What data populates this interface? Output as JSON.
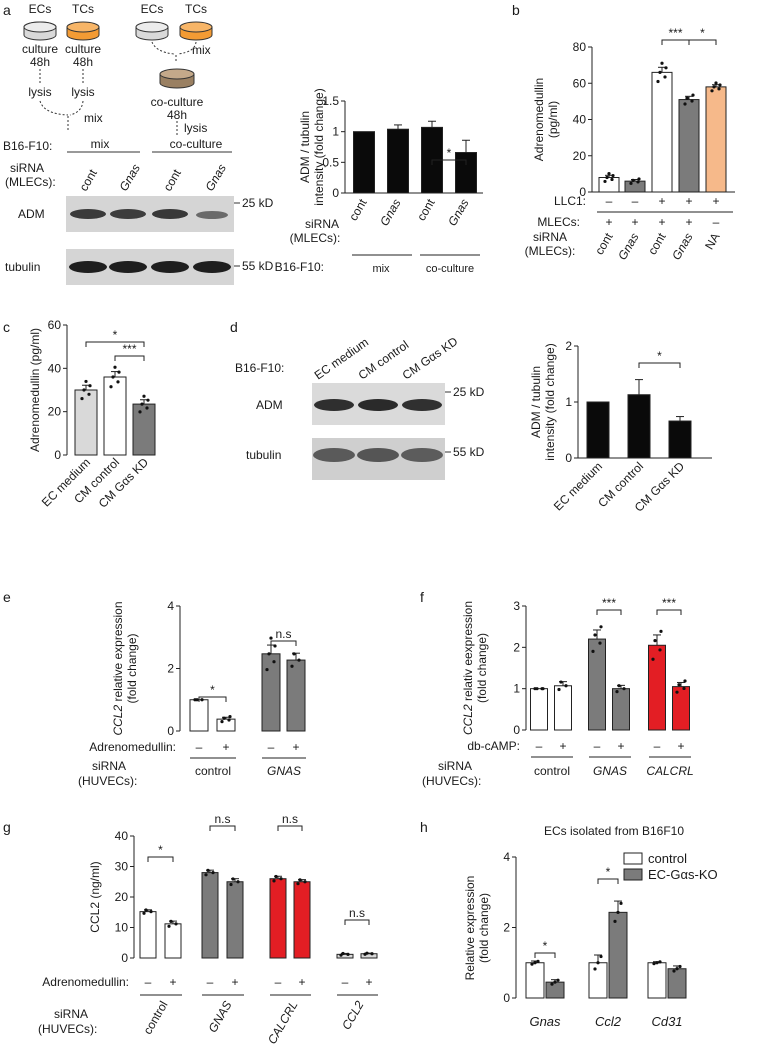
{
  "colors": {
    "black": "#0a0a0a",
    "gray": "#7b7b7b",
    "white": "#ffffff",
    "orange": "#f6b98a",
    "red": "#e31e24",
    "light_gray": "#d9d9d9",
    "blot_bg": "#d7d7d7"
  },
  "panel_a": {
    "letter": "a",
    "schematic": {
      "ec": "ECs",
      "tc": "TCs",
      "culture": "culture",
      "h48": "48h",
      "lysis": "lysis",
      "mix": "mix",
      "coculture": "co-culture",
      "mix_label": "mix",
      "coculture_label": "co-culture"
    },
    "blot": {
      "b16_label": "B16-F10:",
      "sirna_label": "siRNA",
      "mlecs_label": "(MLECs):",
      "lanes": [
        "cont",
        "Gnas",
        "cont",
        "Gnas"
      ],
      "row1": "ADM",
      "row2": "tubulin",
      "kd1": "25 kD",
      "kd2": "55 kD"
    }
  },
  "panel_b": {
    "letter": "b"
  },
  "panel_c": {
    "letter": "c"
  },
  "panel_d": {
    "letter": "d",
    "blot": {
      "b16_label": "B16-F10:",
      "lanes": [
        "EC medium",
        "CM control",
        "CM Gαs KD"
      ],
      "row1": "ADM",
      "row2": "tubulin",
      "kd1": "25 kD",
      "kd2": "55 kD"
    }
  },
  "panel_e": {
    "letter": "e"
  },
  "panel_f": {
    "letter": "f"
  },
  "panel_g": {
    "letter": "g"
  },
  "panel_h": {
    "letter": "h"
  },
  "chart_data": [
    {
      "id": "a_chart",
      "type": "bar",
      "ylabel": "ADM / tubulin intensity (fold change)",
      "ylim": [
        0,
        1.5
      ],
      "yticks": [
        0,
        0.5,
        1,
        1.5
      ],
      "categories": [
        "cont",
        "Gnas",
        "cont",
        "Gnas"
      ],
      "values": [
        1.0,
        1.04,
        1.07,
        0.66
      ],
      "errors": [
        0,
        0.07,
        0.1,
        0.2
      ],
      "row_labels": [
        "siRNA",
        "(MLECs):",
        "B16-F10:"
      ],
      "groups": [
        "mix",
        "co-culture"
      ],
      "sig": [
        {
          "from": 2,
          "to": 3,
          "label": "*"
        }
      ]
    },
    {
      "id": "b_chart",
      "type": "bar",
      "ylabel": "Adrenomedullin (pg/ml)",
      "ylim": [
        0,
        80
      ],
      "yticks": [
        0,
        20,
        40,
        60,
        80
      ],
      "categories": [
        "cont",
        "Gnas",
        "cont",
        "Gnas",
        "NA"
      ],
      "values": [
        8,
        6,
        66,
        51,
        58
      ],
      "errors": [
        1.2,
        0.9,
        2.8,
        1.8,
        1.2
      ],
      "row_labels": [
        "LLC1:",
        "MLECs:",
        "siRNA",
        "(MLECs):"
      ],
      "llc1": [
        "–",
        "–",
        "+",
        "+",
        "+"
      ],
      "mlecs": [
        "+",
        "+",
        "+",
        "+",
        "–"
      ],
      "sig": [
        {
          "from": 2,
          "to": 3,
          "label": "***"
        },
        {
          "from": 3,
          "to": 4,
          "label": "*"
        }
      ]
    },
    {
      "id": "c_chart",
      "type": "bar",
      "ylabel": "Adrenomedullin (pg/ml)",
      "ylim": [
        0,
        60
      ],
      "yticks": [
        0,
        20,
        40,
        60
      ],
      "categories": [
        "EC medium",
        "CM control",
        "CM Gαs KD"
      ],
      "values": [
        30,
        36,
        23.5
      ],
      "errors": [
        2.2,
        2.5,
        2.0
      ],
      "sig": [
        {
          "from": 0,
          "to": 2,
          "label": "*"
        },
        {
          "from": 1,
          "to": 2,
          "label": "***"
        }
      ]
    },
    {
      "id": "d_chart",
      "type": "bar",
      "ylabel": "ADM / tubulin intensity (fold change)",
      "ylim": [
        0,
        2
      ],
      "yticks": [
        0,
        1,
        2
      ],
      "categories": [
        "EC medium",
        "CM control",
        "CM Gαs KD"
      ],
      "values": [
        1.0,
        1.13,
        0.66
      ],
      "errors": [
        0,
        0.27,
        0.08
      ],
      "sig": [
        {
          "from": 1,
          "to": 2,
          "label": "*"
        }
      ]
    },
    {
      "id": "e_chart",
      "type": "bar",
      "ylabel": "CCL2 relative expression (fold change)",
      "ylim": [
        0,
        4
      ],
      "yticks": [
        0,
        2,
        4
      ],
      "categories": [
        "–",
        "+",
        "–",
        "+"
      ],
      "values": [
        1.0,
        0.38,
        2.47,
        2.27
      ],
      "errors": [
        0,
        0.06,
        0.28,
        0.22
      ],
      "treatment": "Adrenomedullin:",
      "row_labels": [
        "siRNA",
        "(HUVECs):"
      ],
      "groups": [
        "control",
        "GNAS"
      ],
      "sig": [
        {
          "from": 0,
          "to": 1,
          "label": "*"
        },
        {
          "from": 2,
          "to": 3,
          "label": "n.s"
        }
      ]
    },
    {
      "id": "f_chart",
      "type": "bar",
      "ylabel": "CCL2 relativ eexpression (fold change)",
      "ylim": [
        0,
        3
      ],
      "yticks": [
        0,
        1,
        2,
        3
      ],
      "categories": [
        "–",
        "+",
        "–",
        "+",
        "–",
        "+"
      ],
      "values": [
        1.0,
        1.07,
        2.2,
        1.0,
        2.05,
        1.05
      ],
      "errors": [
        0,
        0.1,
        0.22,
        0.08,
        0.25,
        0.1
      ],
      "treatment": "db-cAMP:",
      "row_labels": [
        "siRNA",
        "(HUVECs):"
      ],
      "groups": [
        "control",
        "GNAS",
        "CALCRL"
      ],
      "sig": [
        {
          "from": 2,
          "to": 3,
          "label": "***"
        },
        {
          "from": 4,
          "to": 5,
          "label": "***"
        }
      ]
    },
    {
      "id": "g_chart",
      "type": "bar",
      "ylabel": "CCL2 (ng/ml)",
      "ylim": [
        0,
        40
      ],
      "yticks": [
        0,
        10,
        20,
        30,
        40
      ],
      "categories": [
        "–",
        "+",
        "–",
        "+",
        "–",
        "+",
        "–",
        "+"
      ],
      "values": [
        15.2,
        11.2,
        28,
        25,
        26,
        25,
        1.2,
        1.4
      ],
      "errors": [
        0.6,
        0.9,
        0.8,
        1.0,
        0.8,
        0.7,
        0.3,
        0.2
      ],
      "treatment": "Adrenomedullin:",
      "row_labels": [
        "siRNA",
        "(HUVECs):"
      ],
      "groups": [
        "control",
        "GNAS",
        "CALCRL",
        "CCL2"
      ],
      "sig": [
        {
          "from": 0,
          "to": 1,
          "label": "*"
        },
        {
          "from": 2,
          "to": 3,
          "label": "n.s"
        },
        {
          "from": 4,
          "to": 5,
          "label": "n.s"
        },
        {
          "from": 6,
          "to": 7,
          "label": "n.s"
        }
      ]
    },
    {
      "id": "h_chart",
      "type": "bar",
      "title": "ECs isolated from B16F10",
      "ylabel": "Relative expression (fold change)",
      "ylim": [
        0,
        4
      ],
      "yticks": [
        0,
        2,
        4
      ],
      "categories": [
        "Gnas",
        "Ccl2",
        "Cd31"
      ],
      "series": [
        {
          "name": "control",
          "values": [
            1.0,
            1.0,
            1.0
          ],
          "errors": [
            0.05,
            0.22,
            0.03
          ]
        },
        {
          "name": "EC-Gαs-KO",
          "values": [
            0.45,
            2.43,
            0.83
          ],
          "errors": [
            0.07,
            0.32,
            0.08
          ]
        }
      ],
      "sig": [
        {
          "cat": 0,
          "label": "*"
        },
        {
          "cat": 1,
          "label": "*"
        }
      ]
    }
  ]
}
